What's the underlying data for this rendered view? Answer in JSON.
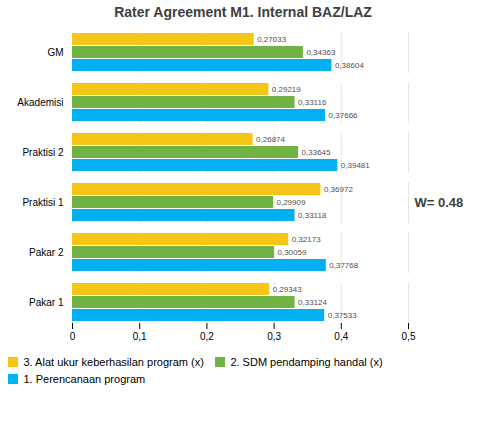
{
  "chart_data": {
    "type": "bar",
    "orientation": "horizontal",
    "title": "Rater Agreement M1. Internal BAZ/LAZ",
    "categories": [
      "GM",
      "Akademisi",
      "Praktisi 2",
      "Praktisi 1",
      "Pakar 2",
      "Pakar 1"
    ],
    "series": [
      {
        "name": "3. Alat ukur keberhasilan program (x)",
        "color": "#f5c518",
        "values": [
          0.27033,
          0.29219,
          0.26874,
          0.36972,
          0.32173,
          0.29343
        ],
        "value_labels": [
          "0,27033",
          "0,29219",
          "0,26874",
          "0,36972",
          "0,32173",
          "0,29343"
        ]
      },
      {
        "name": "2. SDM pendamping handal (x)",
        "color": "#70b244",
        "values": [
          0.34363,
          0.33116,
          0.33645,
          0.29909,
          0.30059,
          0.33124
        ],
        "value_labels": [
          "0,34363",
          "0,33116",
          "0,33645",
          "0,29909",
          "0,30059",
          "0,33124"
        ]
      },
      {
        "name": "1. Perencanaan program",
        "color": "#00b0f0",
        "values": [
          0.38604,
          0.37666,
          0.39481,
          0.33118,
          0.37768,
          0.37533
        ],
        "value_labels": [
          "0,38604",
          "0,37666",
          "0,39481",
          "0,33118",
          "0,37768",
          "0,37533"
        ]
      }
    ],
    "xlim": [
      0,
      0.5
    ],
    "xticks": [
      0,
      {
        "value": 0.1,
        "label": "0,1"
      },
      {
        "value": 0.2,
        "label": "0,2"
      },
      {
        "value": 0.3,
        "label": "0,3"
      },
      {
        "value": 0.4,
        "label": "0,4"
      },
      {
        "value": 0.5,
        "label": "0,5"
      }
    ],
    "annotation": "W= 0.48",
    "grid": true,
    "data_labels": true,
    "legend": "bottom"
  }
}
